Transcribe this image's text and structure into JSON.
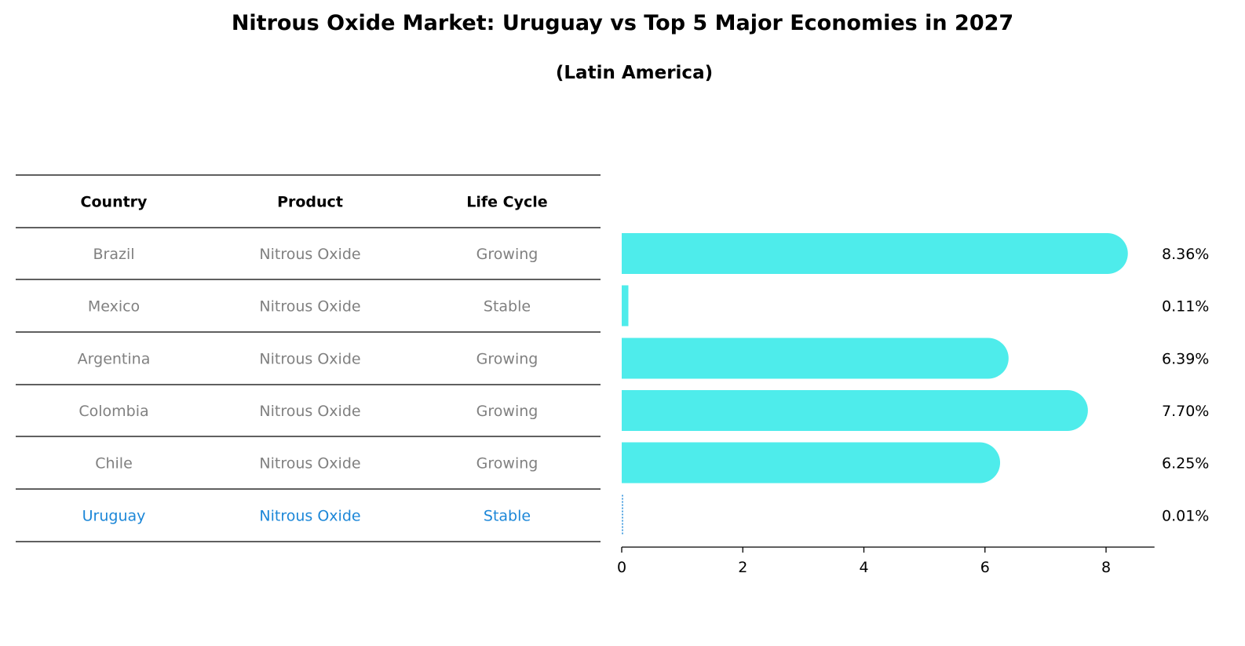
{
  "title": "Nitrous Oxide Market: Uruguay vs Top 5 Major Economies in 2027",
  "subtitle": "(Latin America)",
  "table": {
    "headers": [
      "Country",
      "Product",
      "Life Cycle"
    ],
    "rows": [
      {
        "country": "Brazil",
        "product": "Nitrous Oxide",
        "life_cycle": "Growing"
      },
      {
        "country": "Mexico",
        "product": "Nitrous Oxide",
        "life_cycle": "Stable"
      },
      {
        "country": "Argentina",
        "product": "Nitrous Oxide",
        "life_cycle": "Growing"
      },
      {
        "country": "Colombia",
        "product": "Nitrous Oxide",
        "life_cycle": "Growing"
      },
      {
        "country": "Chile",
        "product": "Nitrous Oxide",
        "life_cycle": "Growing"
      },
      {
        "country": "Uruguay",
        "product": "Nitrous Oxide",
        "life_cycle": "Stable"
      }
    ],
    "highlight_country": "Uruguay"
  },
  "colors": {
    "bar": "#4eeceb",
    "highlight_text": "#1c87d8",
    "muted_text": "#808080"
  },
  "chart_data": {
    "type": "bar",
    "orientation": "horizontal",
    "categories": [
      "Brazil",
      "Mexico",
      "Argentina",
      "Colombia",
      "Chile",
      "Uruguay"
    ],
    "values": [
      8.36,
      0.11,
      6.39,
      7.7,
      6.25,
      0.01
    ],
    "value_labels": [
      "8.36%",
      "0.11%",
      "6.39%",
      "7.70%",
      "6.25%",
      "0.01%"
    ],
    "xlim": [
      0,
      8.8
    ],
    "xticks": [
      0,
      2,
      4,
      6,
      8
    ],
    "xlabel": "",
    "ylabel": "",
    "grid": false,
    "legend": "none"
  }
}
